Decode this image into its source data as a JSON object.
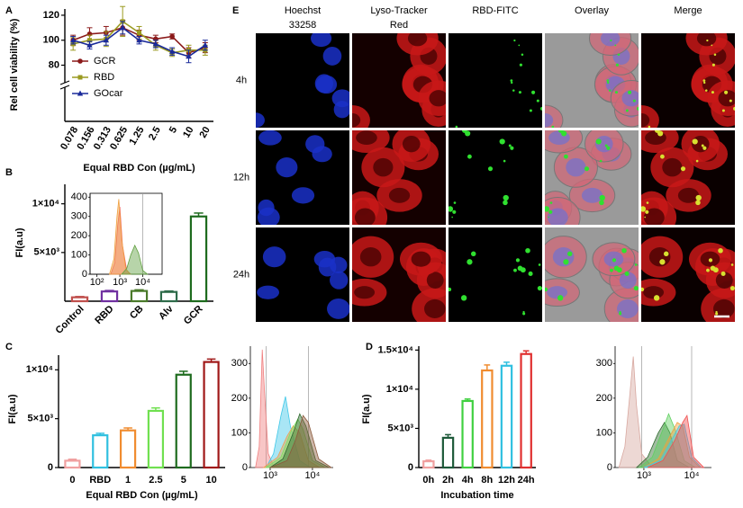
{
  "chart_data": [
    {
      "type": "line",
      "panel": "A",
      "ylabel": "Rel cell viability (%)",
      "xlabel": "Equal RBD Con (µg/mL)",
      "categories": [
        "0.078",
        "0.156",
        "0.313",
        "0.625",
        "1.25",
        "2.5",
        "5",
        "10",
        "20"
      ],
      "ylim": [
        35,
        125
      ],
      "yticks": [
        80,
        100,
        120
      ],
      "legend": "left",
      "series": [
        {
          "name": "GCR",
          "color": "#8b1a1a",
          "marker": "circle",
          "values": [
            100,
            105,
            106,
            110,
            104,
            101,
            103,
            90,
            94
          ],
          "errors": [
            4,
            5,
            5,
            6,
            4,
            3,
            2,
            4,
            4
          ]
        },
        {
          "name": "RBD",
          "color": "#9a9a20",
          "marker": "square",
          "values": [
            97,
            100,
            101,
            115,
            106,
            96,
            90,
            92,
            92
          ],
          "errors": [
            5,
            4,
            6,
            12,
            5,
            4,
            3,
            4,
            4
          ]
        },
        {
          "name": "GOcar",
          "color": "#1a2a9a",
          "marker": "triangle",
          "values": [
            100,
            96,
            100,
            110,
            100,
            97,
            91,
            87,
            96
          ],
          "errors": [
            3,
            3,
            4,
            5,
            3,
            3,
            3,
            5,
            4
          ]
        }
      ]
    },
    {
      "type": "bar",
      "panel": "B",
      "ylabel": "FI(a.u)",
      "categories": [
        "Control",
        "RBD",
        "CB",
        "Alv",
        "GCR"
      ],
      "values": [
        400,
        1000,
        1050,
        950,
        8700
      ],
      "errors": [
        80,
        100,
        120,
        100,
        350
      ],
      "colors": [
        "#c0504d",
        "#7030a0",
        "#4a7a2a",
        "#2e6b4a",
        "#1e6b1e"
      ],
      "ylim": [
        0,
        12000
      ],
      "yticks": [
        {
          "value": 5000,
          "label": "5×10³"
        },
        {
          "value": 10000,
          "label": "1×10⁴"
        }
      ]
    },
    {
      "type": "area",
      "xscale": "log",
      "frame": true,
      "xlim": [
        50,
        70000
      ],
      "xticks": [
        {
          "value": 100,
          "label": "10²"
        },
        {
          "value": 1000,
          "label": "10³"
        },
        {
          "value": 10000,
          "label": "10⁴"
        }
      ],
      "ylim": [
        0,
        420
      ],
      "yticks": [
        0,
        100,
        200,
        300,
        400
      ],
      "reference_lines": [
        10000
      ],
      "series": [
        {
          "color": "#f06060",
          "x": [
            400,
            600,
            800,
            1000,
            1300,
            2000,
            3000
          ],
          "values": [
            0,
            60,
            250,
            350,
            150,
            20,
            0
          ]
        },
        {
          "color": "#f0a040",
          "x": [
            350,
            550,
            750,
            900,
            1200,
            1800,
            2800
          ],
          "values": [
            0,
            80,
            300,
            390,
            180,
            30,
            0
          ]
        },
        {
          "color": "#60a040",
          "x": [
            1200,
            2000,
            3000,
            4500,
            6500,
            10000,
            16000
          ],
          "values": [
            0,
            30,
            100,
            150,
            110,
            20,
            0
          ]
        }
      ]
    },
    {
      "type": "bar",
      "panel": "C",
      "ylabel": "FI(a.u)",
      "xlabel": "Equal RBD Con (µg/mL)",
      "categories": [
        "0",
        "RBD",
        "1",
        "2.5",
        "5",
        "10"
      ],
      "values": [
        700,
        3300,
        3800,
        5800,
        9500,
        10800
      ],
      "errors": [
        150,
        200,
        250,
        300,
        350,
        300
      ],
      "colors": [
        "#f0a0a0",
        "#30c0e0",
        "#f08c30",
        "#70e050",
        "#1e6b1e",
        "#a01818"
      ],
      "ylim": [
        0,
        11500
      ],
      "yticks": [
        0,
        {
          "value": 5000,
          "label": "5×10³"
        },
        {
          "value": 10000,
          "label": "1×10⁴"
        }
      ]
    },
    {
      "type": "area",
      "xscale": "log",
      "xlim": [
        340,
        31000
      ],
      "xticks": [
        {
          "value": 1000,
          "label": "10³"
        },
        {
          "value": 10000,
          "label": "10⁴"
        }
      ],
      "ylim": [
        0,
        350
      ],
      "yticks": [
        0,
        100,
        200,
        300
      ],
      "reference_lines": [
        800,
        8000
      ],
      "series": [
        {
          "color": "#f08080",
          "x": [
            450,
            550,
            650,
            750,
            900,
            1200,
            2000
          ],
          "values": [
            0,
            60,
            340,
            200,
            40,
            5,
            0
          ]
        },
        {
          "color": "#40c8e8",
          "x": [
            800,
            1200,
            1800,
            2300,
            3000,
            5000,
            9000
          ],
          "values": [
            0,
            40,
            150,
            205,
            120,
            20,
            0
          ]
        },
        {
          "color": "#f0a050",
          "x": [
            700,
            1500,
            2500,
            3500,
            5000,
            8000,
            15000
          ],
          "values": [
            0,
            30,
            90,
            120,
            100,
            20,
            0
          ]
        },
        {
          "color": "#80e060",
          "x": [
            800,
            1800,
            3000,
            4500,
            6000,
            10000,
            20000
          ],
          "values": [
            0,
            30,
            100,
            140,
            110,
            20,
            0
          ]
        },
        {
          "color": "#2e6b2e",
          "x": [
            1000,
            2000,
            3500,
            5000,
            7000,
            12000,
            25000
          ],
          "values": [
            0,
            25,
            100,
            155,
            120,
            20,
            0
          ]
        },
        {
          "color": "#8b5a3c",
          "x": [
            1000,
            2500,
            4000,
            6000,
            8000,
            14000,
            28000
          ],
          "values": [
            0,
            20,
            80,
            150,
            130,
            25,
            0
          ]
        }
      ]
    },
    {
      "type": "bar",
      "panel": "D",
      "ylabel": "FI(a.u)",
      "xlabel": "Incubation time",
      "categories": [
        "0h",
        "2h",
        "4h",
        "8h",
        "12h",
        "24h"
      ],
      "values": [
        800,
        3800,
        8500,
        12400,
        13000,
        14500
      ],
      "errors": [
        150,
        400,
        250,
        700,
        450,
        400
      ],
      "colors": [
        "#f0a0a0",
        "#1e5a3a",
        "#40d040",
        "#f08c30",
        "#30c0e0",
        "#e03030"
      ],
      "ylim": [
        0,
        15500
      ],
      "yticks": [
        0,
        {
          "value": 5000,
          "label": "5×10³"
        },
        {
          "value": 10000,
          "label": "1×10⁴"
        },
        {
          "value": 15000,
          "label": "1.5×10⁴"
        }
      ]
    },
    {
      "type": "area",
      "xscale": "log",
      "xlim": [
        250,
        26000
      ],
      "xticks": [
        {
          "value": 1000,
          "label": "10³"
        },
        {
          "value": 10000,
          "label": "10⁴"
        }
      ],
      "ylim": [
        0,
        350
      ],
      "yticks": [
        0,
        100,
        200,
        300
      ],
      "reference_lines": [
        900,
        10000
      ],
      "series": [
        {
          "color": "#d8a8a0",
          "x": [
            300,
            400,
            500,
            600,
            700,
            900,
            1500
          ],
          "values": [
            0,
            60,
            200,
            320,
            180,
            40,
            0
          ]
        },
        {
          "color": "#2e6b2e",
          "x": [
            700,
            1200,
            2000,
            2700,
            3500,
            5000,
            9000
          ],
          "values": [
            0,
            30,
            100,
            130,
            100,
            20,
            0
          ]
        },
        {
          "color": "#60d060",
          "x": [
            800,
            1500,
            2500,
            3300,
            4500,
            7000,
            12000
          ],
          "values": [
            0,
            30,
            110,
            155,
            110,
            20,
            0
          ]
        },
        {
          "color": "#f0a040",
          "x": [
            1000,
            2000,
            3500,
            5000,
            6500,
            9000,
            15000
          ],
          "values": [
            0,
            25,
            90,
            130,
            120,
            30,
            0
          ]
        },
        {
          "color": "#40c8e8",
          "x": [
            1000,
            2200,
            3800,
            5500,
            7000,
            10000,
            16000
          ],
          "values": [
            0,
            20,
            80,
            120,
            125,
            30,
            0
          ]
        },
        {
          "color": "#f05050",
          "x": [
            1200,
            2500,
            4500,
            6500,
            8000,
            11000,
            18000
          ],
          "values": [
            0,
            20,
            80,
            130,
            150,
            30,
            0
          ]
        }
      ]
    }
  ],
  "image_grid": {
    "panel": "E",
    "columns": [
      {
        "lines": [
          "Hoechst",
          "33258"
        ],
        "color": "#2040e0"
      },
      {
        "lines": [
          "Lyso-Tracker",
          "Red"
        ],
        "color": "#e02020"
      },
      {
        "lines": [
          "RBD-FITC"
        ],
        "color": "#20a020"
      },
      {
        "lines": [
          "Overlay"
        ],
        "color": "#000000"
      },
      {
        "lines": [
          "Merge"
        ],
        "color": "#f0b020"
      }
    ],
    "rows": [
      "4h",
      "12h",
      "24h"
    ]
  }
}
